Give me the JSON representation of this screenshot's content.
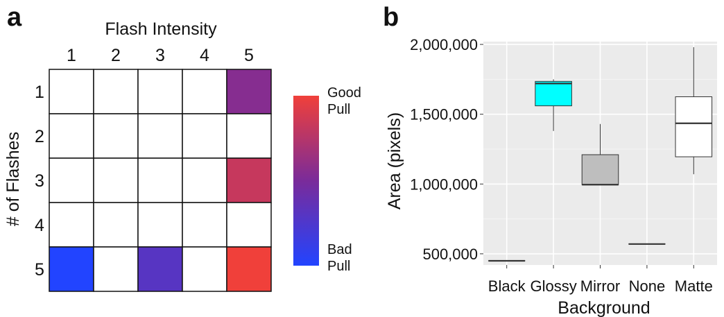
{
  "panel_a": {
    "letter": "a",
    "legend": {
      "top_label": "Good\nPull",
      "bottom_label": "Bad\nPull",
      "color_top": "#f0403a",
      "color_mid": "#7a2b9a",
      "color_bottom": "#2244ff"
    }
  },
  "panel_b": {
    "letter": "b"
  },
  "chart_data": [
    {
      "type": "heatmap",
      "xlabel": "Flash Intensity",
      "ylabel": "# of Flashes",
      "x": [
        "1",
        "2",
        "3",
        "4",
        "5"
      ],
      "y": [
        "1",
        "2",
        "3",
        "4",
        "5"
      ],
      "scale_note": "0 = Bad Pull, 1 = Good Pull; null = blank (white)",
      "values": [
        [
          null,
          null,
          null,
          null,
          0.55
        ],
        [
          null,
          null,
          null,
          null,
          null
        ],
        [
          null,
          null,
          null,
          null,
          0.82
        ],
        [
          null,
          null,
          null,
          null,
          null
        ],
        [
          0.0,
          null,
          0.3,
          null,
          1.0
        ]
      ]
    },
    {
      "type": "box",
      "xlabel": "Background",
      "ylabel": "Area (pixels)",
      "categories": [
        "Black",
        "Glossy",
        "Mirror",
        "None",
        "Matte"
      ],
      "ylim": [
        420000,
        2020000
      ],
      "yticks": [
        500000,
        1000000,
        1500000,
        2000000
      ],
      "ytick_labels": [
        "500,000",
        "1,000,000",
        "1,500,000",
        "2,000,000"
      ],
      "grid": true,
      "boxes": [
        {
          "name": "Black",
          "fill": "#ffffff",
          "min": 450000,
          "q1": 450000,
          "median": 450000,
          "q3": 450000,
          "max": 450000
        },
        {
          "name": "Glossy",
          "fill": "#00ffff",
          "min": 1380000,
          "q1": 1560000,
          "median": 1720000,
          "q3": 1735000,
          "max": 1750000
        },
        {
          "name": "Mirror",
          "fill": "#bebebe",
          "min": 995000,
          "q1": 995000,
          "median": 995000,
          "q3": 1210000,
          "max": 1430000
        },
        {
          "name": "None",
          "fill": "#ffffff",
          "min": 570000,
          "q1": 570000,
          "median": 570000,
          "q3": 570000,
          "max": 570000
        },
        {
          "name": "Matte",
          "fill": "#ffffff",
          "min": 1070000,
          "q1": 1195000,
          "median": 1435000,
          "q3": 1625000,
          "max": 1980000
        }
      ]
    }
  ]
}
